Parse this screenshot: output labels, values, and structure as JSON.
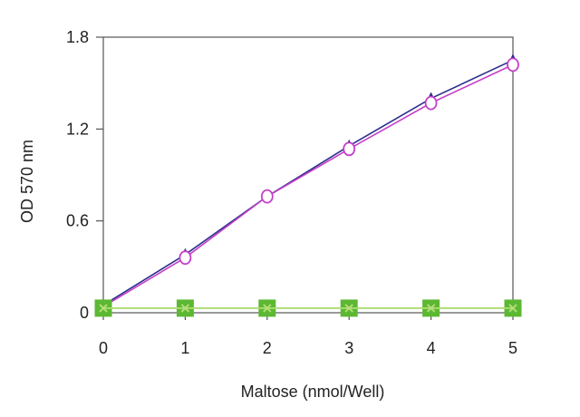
{
  "chart_data": {
    "type": "line",
    "xlabel": "Maltose (nmol/Well)",
    "ylabel": "OD 570 nm",
    "xlim": [
      0,
      5
    ],
    "ylim": [
      0,
      1.8
    ],
    "x_ticks": [
      "0",
      "1",
      "2",
      "3",
      "4",
      "5"
    ],
    "y_ticks": [
      "0",
      "0.6",
      "1.2",
      "1.8"
    ],
    "grid": false,
    "x": [
      0,
      1,
      2,
      3,
      4,
      5
    ],
    "series": [
      {
        "values": [
          0.05,
          0.38,
          0.76,
          1.09,
          1.4,
          1.65
        ],
        "color": "#2b2f8c",
        "marker": "triangle"
      },
      {
        "values": [
          0.04,
          0.36,
          0.76,
          1.07,
          1.37,
          1.62
        ],
        "color": "#c43fc8",
        "marker": "circle"
      },
      {
        "values": [
          0.03,
          0.03,
          0.03,
          0.03,
          0.03,
          0.03
        ],
        "color": "#5cb833",
        "marker": "square"
      },
      {
        "values": [
          0.03,
          0.03,
          0.03,
          0.03,
          0.03,
          0.03
        ],
        "color": "#b7e07a",
        "marker": "x"
      }
    ]
  }
}
